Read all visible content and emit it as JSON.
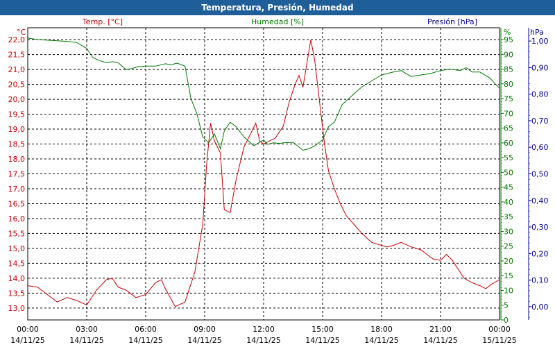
{
  "window": {
    "title": "Temperatura, Presión, Humedad"
  },
  "colors": {
    "temperature": "#c00000",
    "humidity": "#007800",
    "pressure": "#00008b",
    "titlebar": "#1f5f99"
  },
  "chart_data": {
    "type": "line",
    "title": "Temperatura, Presión, Humedad",
    "grid": true,
    "x_ticks": [
      {
        "time": "00:00",
        "date": "14/11/25"
      },
      {
        "time": "03:00",
        "date": "14/11/25"
      },
      {
        "time": "06:00",
        "date": "14/11/25"
      },
      {
        "time": "09:00",
        "date": "14/11/25"
      },
      {
        "time": "12:00",
        "date": "14/11/25"
      },
      {
        "time": "15:00",
        "date": "14/11/25"
      },
      {
        "time": "18:00",
        "date": "14/11/25"
      },
      {
        "time": "21:00",
        "date": "14/11/25"
      },
      {
        "time": "00:00",
        "date": "15/11/25"
      }
    ],
    "xlim_hours": [
      0,
      24
    ],
    "axes": {
      "temperature": {
        "label": "Temp. [°C]",
        "unit": "°C",
        "ylim": [
          12.6,
          22.4
        ],
        "ticks": [
          "13,0",
          "13,5",
          "14,0",
          "14,5",
          "15,0",
          "15,5",
          "16,0",
          "16,5",
          "17,0",
          "17,5",
          "18,0",
          "18,5",
          "19,0",
          "19,5",
          "20,0",
          "20,5",
          "21,0",
          "21,5",
          "22,0"
        ]
      },
      "humidity": {
        "label": "Humedad [%]",
        "unit": "%",
        "ylim": [
          0,
          99
        ],
        "ticks": [
          "0",
          "5",
          "10",
          "15",
          "20",
          "25",
          "30",
          "35",
          "40",
          "45",
          "50",
          "55",
          "60",
          "65",
          "70",
          "75",
          "80",
          "85",
          "90",
          "95"
        ]
      },
      "pressure": {
        "label": "Presión [hPa]",
        "unit": "hPa",
        "ylim": [
          -0.05,
          1.05
        ],
        "ticks": [
          "0,00",
          "0,10",
          "0,20",
          "0,30",
          "0,40",
          "0,50",
          "0,60",
          "0,70",
          "0,80",
          "0,90",
          "1,00"
        ]
      }
    },
    "series": [
      {
        "name": "Temp. [°C]",
        "axis": "temperature",
        "x": [
          0,
          0.5,
          1,
          1.5,
          2,
          2.5,
          3,
          3.5,
          4,
          4.3,
          4.6,
          5,
          5.5,
          6,
          6.5,
          6.8,
          7,
          7.5,
          8,
          8.5,
          8.9,
          9.1,
          9.3,
          9.5,
          9.8,
          10,
          10.3,
          10.6,
          11,
          11.3,
          11.6,
          11.8,
          12,
          12.3,
          12.6,
          13,
          13.3,
          13.6,
          13.8,
          14,
          14.2,
          14.4,
          14.6,
          14.9,
          15.1,
          15.3,
          15.6,
          15.9,
          16.2,
          16.6,
          17,
          17.5,
          18,
          18.3,
          18.6,
          19,
          19.5,
          20,
          20.3,
          20.6,
          21,
          21.3,
          21.6,
          21.9,
          22.2,
          22.6,
          23,
          23.3,
          23.6,
          24
        ],
        "values": [
          13.75,
          13.7,
          13.45,
          13.2,
          13.35,
          13.25,
          13.1,
          13.6,
          13.95,
          14.0,
          13.7,
          13.6,
          13.35,
          13.45,
          13.85,
          13.95,
          13.65,
          13.05,
          13.2,
          14.2,
          15.8,
          17.8,
          19.2,
          18.6,
          18.2,
          16.3,
          16.2,
          17.3,
          18.4,
          18.8,
          19.2,
          18.6,
          18.5,
          18.6,
          18.7,
          19.1,
          19.9,
          20.5,
          20.8,
          20.4,
          21.2,
          22.0,
          21.3,
          19.6,
          18.5,
          17.6,
          17.0,
          16.5,
          16.1,
          15.8,
          15.5,
          15.2,
          15.1,
          15.05,
          15.1,
          15.2,
          15.05,
          14.95,
          14.8,
          14.65,
          14.6,
          14.8,
          14.6,
          14.3,
          14.0,
          13.85,
          13.75,
          13.65,
          13.8,
          13.95
        ]
      },
      {
        "name": "Humedad [%]",
        "axis": "humidity",
        "x": [
          0,
          0.5,
          1,
          1.5,
          2,
          2.5,
          3,
          3.3,
          3.6,
          4,
          4.3,
          4.6,
          5,
          5.3,
          5.6,
          6,
          6.5,
          7,
          7.3,
          7.6,
          8,
          8.3,
          8.6,
          8.9,
          9.2,
          9.5,
          9.8,
          10,
          10.3,
          10.6,
          11,
          11.5,
          12,
          12.2,
          12.5,
          12.8,
          13,
          13.5,
          14,
          14.3,
          14.6,
          15,
          15.3,
          15.6,
          16,
          16.5,
          17,
          17.5,
          18,
          18.3,
          18.6,
          19,
          19.5,
          20,
          20.5,
          21,
          21.5,
          22,
          22.3,
          22.6,
          23,
          23.5,
          24
        ],
        "values": [
          95.5,
          95,
          94.8,
          94.6,
          94.4,
          94,
          92,
          89,
          88,
          87.2,
          87.5,
          87.2,
          84.8,
          85.2,
          85.8,
          86,
          86,
          86.8,
          86.5,
          87,
          86,
          75,
          70,
          62,
          60,
          63,
          58,
          64,
          67,
          65.5,
          62,
          59,
          61,
          59.5,
          60,
          59.8,
          60,
          60.2,
          57.5,
          58,
          59,
          61,
          65.5,
          67,
          73,
          76,
          79,
          81,
          83,
          83.5,
          84,
          84.5,
          82.5,
          83,
          83.5,
          84.5,
          85,
          84.5,
          85.5,
          84,
          84,
          82,
          78.5
        ]
      }
    ]
  }
}
